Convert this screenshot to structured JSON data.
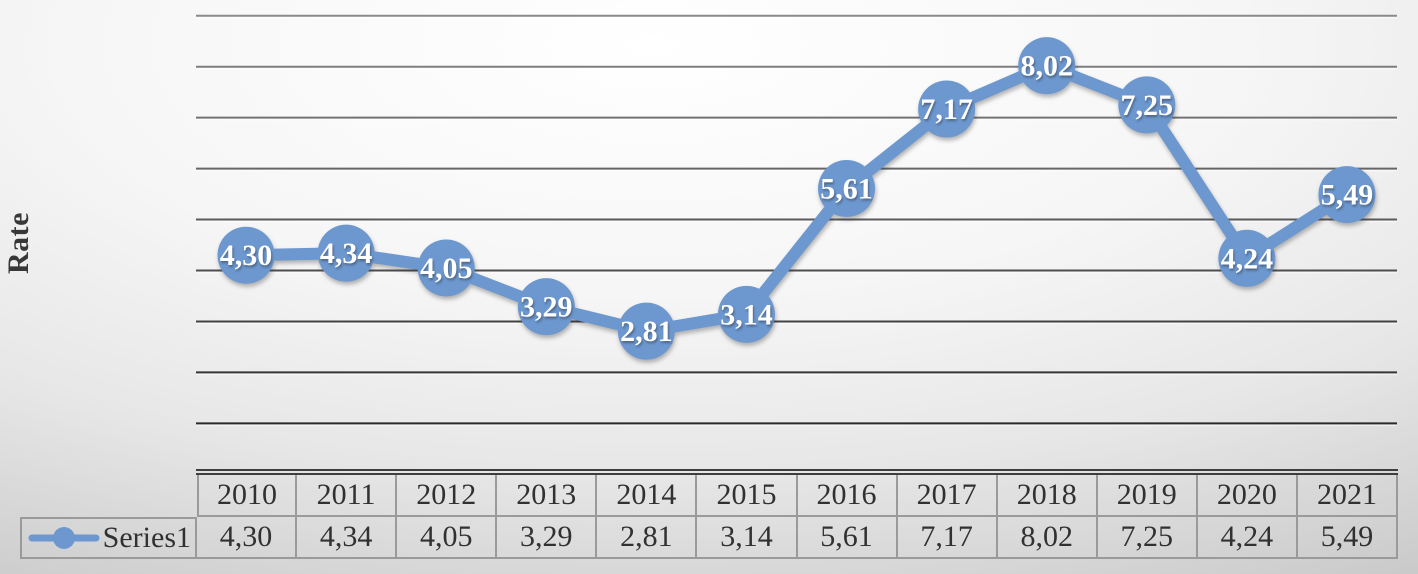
{
  "chart_data": {
    "type": "line",
    "title": "",
    "xlabel": "",
    "ylabel": "Rate",
    "categories": [
      "2010",
      "2011",
      "2012",
      "2013",
      "2014",
      "2015",
      "2016",
      "2017",
      "2018",
      "2019",
      "2020",
      "2021"
    ],
    "series": [
      {
        "name": "Series1",
        "values": [
          4.3,
          4.34,
          4.05,
          3.29,
          2.81,
          3.14,
          5.61,
          7.17,
          8.02,
          7.25,
          4.24,
          5.49
        ],
        "labels": [
          "4,30",
          "4,34",
          "4,05",
          "3,29",
          "2,81",
          "3,14",
          "5,61",
          "7,17",
          "8,02",
          "7,25",
          "4,24",
          "5,49"
        ]
      }
    ],
    "ylim": [
      0,
      9
    ],
    "y_gridlines": [
      1,
      2,
      3,
      4,
      5,
      6,
      7,
      8,
      9
    ],
    "grid": true,
    "y_tick_labels_visible": false,
    "marker": "circle",
    "data_labels": "centered-on-marker",
    "decimal_separator": ",",
    "legend_position": "data-table-left"
  },
  "colors": {
    "series": "#6C97CF",
    "data_label_text": "#FFFFFF",
    "table_border": "#9A9A9A",
    "table_text": "#313131",
    "axis_line": "#3E3E3E",
    "axis_title_text": "#383838"
  }
}
